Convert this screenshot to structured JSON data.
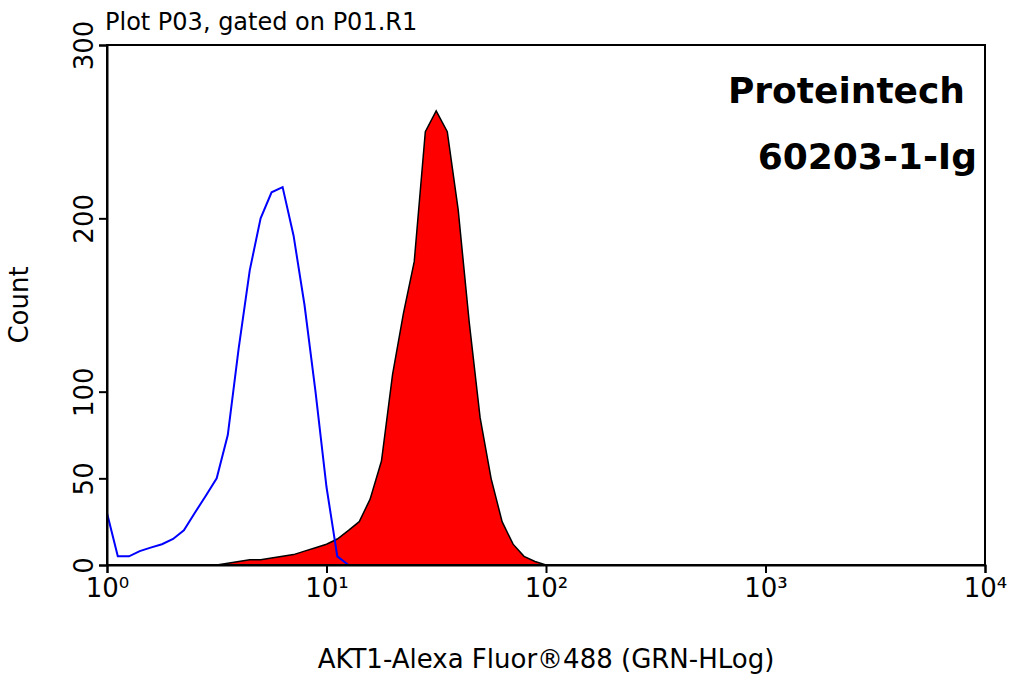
{
  "chart_data": {
    "type": "line",
    "title": "Plot P03, gated on P01.R1",
    "annotations": [
      "Proteintech",
      "60203-1-Ig"
    ],
    "x_label": "AKT1-Alexa Fluor®488 (GRN-HLog)",
    "y_label": "Count",
    "log": "x",
    "grid": false,
    "xlim": [
      1,
      10000
    ],
    "ylim": [
      0,
      300
    ],
    "xticks": [
      {
        "value": 1,
        "label": "10⁰"
      },
      {
        "value": 10,
        "label": "10¹"
      },
      {
        "value": 100,
        "label": "10²"
      },
      {
        "value": 1000,
        "label": "10³"
      },
      {
        "value": 10000,
        "label": "10⁴"
      }
    ],
    "yticks": [
      0,
      50,
      100,
      200,
      300
    ],
    "x": [
      1,
      1.12,
      1.26,
      1.41,
      1.58,
      1.78,
      2,
      2.24,
      2.51,
      2.82,
      3.16,
      3.55,
      3.98,
      4.47,
      5.01,
      5.62,
      6.31,
      7.08,
      7.94,
      8.91,
      10,
      11.2,
      12.6,
      14.1,
      15.8,
      17.8,
      20,
      22.4,
      25.1,
      28.2,
      31.6,
      35.5,
      39.8,
      44.7,
      50.1,
      56.2,
      63.1,
      70.8,
      79.4,
      89.1,
      100,
      112,
      126,
      141,
      158,
      178,
      200
    ],
    "series": [
      {
        "type": "line",
        "color": "#0000ff",
        "values": [
          30,
          5,
          5,
          8,
          10,
          12,
          15,
          20,
          30,
          40,
          50,
          75,
          125,
          170,
          200,
          215,
          218,
          190,
          150,
          100,
          45,
          5,
          0,
          0,
          0,
          0,
          0,
          0,
          0,
          0,
          0,
          0,
          0,
          0,
          0,
          0,
          0,
          0,
          0,
          0,
          0,
          0,
          0,
          0,
          0,
          0,
          0
        ]
      },
      {
        "type": "area",
        "color": "#ff0000",
        "values": [
          0,
          0,
          0,
          0,
          0,
          0,
          0,
          0,
          0,
          0,
          0,
          1,
          2,
          3,
          3,
          4,
          5,
          6,
          8,
          10,
          12,
          15,
          20,
          25,
          38,
          60,
          110,
          145,
          175,
          250,
          262,
          250,
          205,
          140,
          85,
          50,
          25,
          12,
          5,
          2,
          0,
          0,
          0,
          0,
          0,
          0,
          0
        ]
      }
    ]
  }
}
